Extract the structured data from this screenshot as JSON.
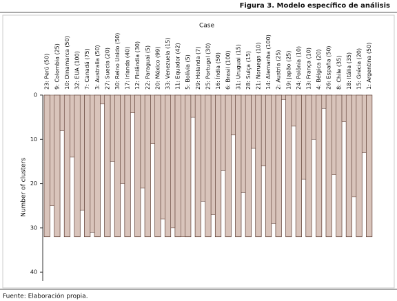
{
  "chart_data": {
    "type": "icicle",
    "title": "Figura 3. Modelo específico de análisis",
    "x_label": "Case",
    "y_label": "Number of clusters",
    "source": "Fuente: Elaboración propia.",
    "categories": [
      "23: Perú (50)",
      "9: Colombia (25)",
      "10: Dinamarca (50)",
      "32: EUA (100)",
      "7: Canadá (75)",
      "3: Australia (50)",
      "27: Suecia (20)",
      "30: Reino Unido (50)",
      "17: Irlanda (40)",
      "12: Finlândia (30)",
      "22: Paraguai (5)",
      "20: México (99)",
      "33: Venezuela (15)",
      "11: Equador (42)",
      "5: Bolívia (5)",
      "29: Holanda (7)",
      "25: Portugal (30)",
      "16: Índia (50)",
      "6: Brasil (100)",
      "31: Uruguai (15)",
      "28: Suiça (15)",
      "21: Noruega (10)",
      "14: Alemanha (100)",
      "2: Austria (25)",
      "19: Japão (25)",
      "24: Polônia (10)",
      "13: França (10)",
      "4: Bélgica (20)",
      "26: España (50)",
      "8: Chile (35)",
      "18: Itália (35)",
      "15: Grécia (20)",
      "1: Argentina (50)"
    ],
    "values": [
      32,
      32,
      32,
      32,
      32,
      32,
      32,
      32,
      32,
      32,
      32,
      32,
      32,
      32,
      32,
      32,
      32,
      32,
      32,
      32,
      32,
      32,
      32,
      32,
      32,
      32,
      32,
      32,
      32,
      32,
      32,
      32,
      32
    ],
    "merge_levels": [
      25,
      8,
      14,
      26,
      31,
      2,
      15,
      20,
      4,
      21,
      11,
      28,
      30,
      32,
      5,
      24,
      27,
      17,
      9,
      22,
      12,
      16,
      29,
      1,
      7,
      19,
      10,
      3,
      18,
      6,
      23,
      13
    ],
    "color": "#d9c4bb",
    "ylim": [
      0,
      42
    ],
    "yticks": [
      0,
      10,
      20,
      30,
      40
    ]
  }
}
